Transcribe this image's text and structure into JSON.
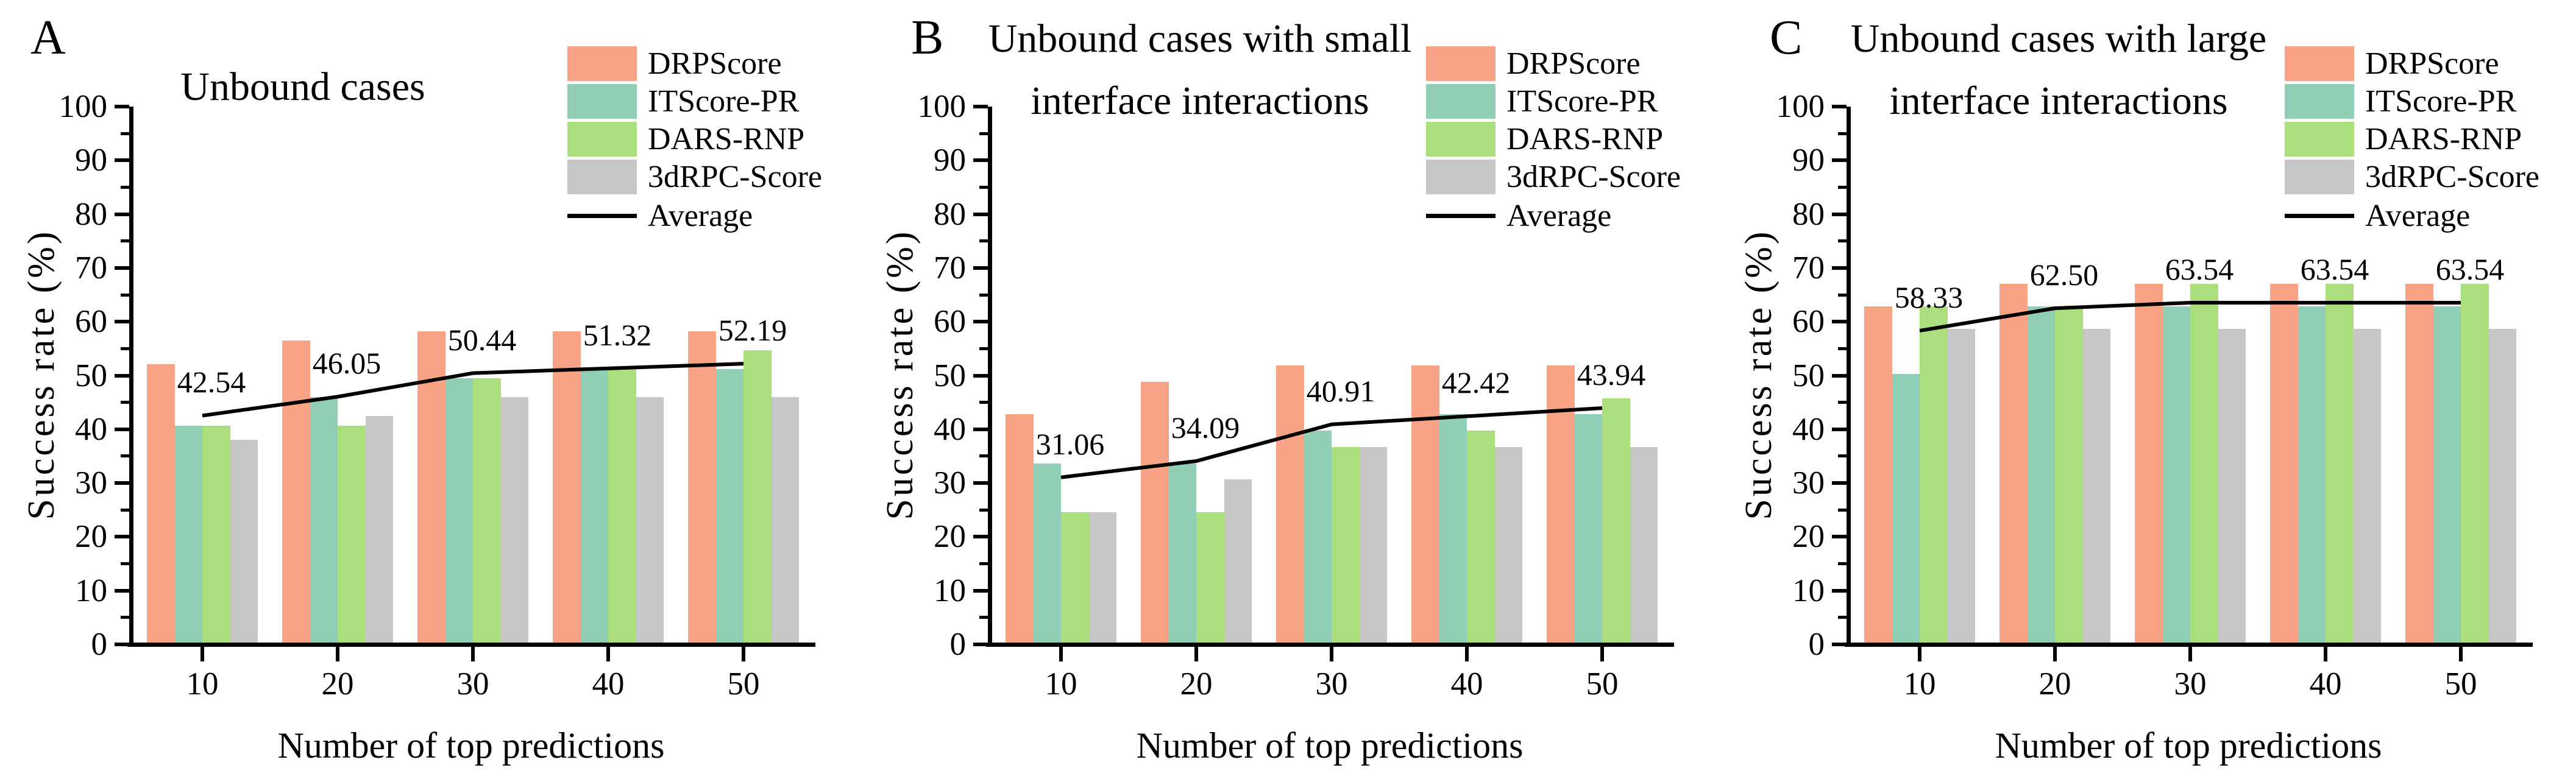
{
  "figure": {
    "background": "#ffffff",
    "axis_color": "#000000",
    "average_line_color": "#000000"
  },
  "chart_data": [
    {
      "type": "bar",
      "panel_label": "A",
      "title_lines": [
        "Unbound cases"
      ],
      "xlabel": "Number of top predictions",
      "ylabel": "Success rate (%)",
      "categories": [
        "10",
        "20",
        "30",
        "40",
        "50"
      ],
      "ylim": [
        0,
        100
      ],
      "ytick_step": 10,
      "yticks": [
        "0",
        "10",
        "20",
        "30",
        "40",
        "50",
        "60",
        "70",
        "80",
        "90",
        "100"
      ],
      "grid": "off",
      "legend_position": "top-right",
      "series": [
        {
          "name": "DRPScore",
          "color": "#F9A386",
          "values": [
            51.75,
            56.14,
            57.89,
            57.89,
            57.89
          ]
        },
        {
          "name": "ITScore-PR",
          "color": "#90CEB6",
          "values": [
            40.35,
            45.61,
            49.12,
            50.88,
            50.88
          ]
        },
        {
          "name": "DARS-RNP",
          "color": "#ABDF7D",
          "values": [
            40.35,
            40.35,
            49.12,
            50.88,
            54.39
          ]
        },
        {
          "name": "3dRPC-Score",
          "color": "#C6C6C6",
          "values": [
            37.72,
            42.11,
            45.61,
            45.61,
            45.61
          ]
        }
      ],
      "average": {
        "name": "Average",
        "color": "#000000",
        "values": [
          42.54,
          46.05,
          50.44,
          51.32,
          52.19
        ],
        "labels": [
          "42.54",
          "46.05",
          "50.44",
          "51.32",
          "52.19"
        ]
      }
    },
    {
      "type": "bar",
      "panel_label": "B",
      "title_lines": [
        "Unbound cases with small",
        "interface interactions"
      ],
      "xlabel": "Number of top predictions",
      "ylabel": "Success rate (%)",
      "categories": [
        "10",
        "20",
        "30",
        "40",
        "50"
      ],
      "ylim": [
        0,
        100
      ],
      "ytick_step": 10,
      "yticks": [
        "0",
        "10",
        "20",
        "30",
        "40",
        "50",
        "60",
        "70",
        "80",
        "90",
        "100"
      ],
      "grid": "off",
      "legend_position": "top-right",
      "series": [
        {
          "name": "DRPScore",
          "color": "#F9A386",
          "values": [
            42.42,
            48.48,
            51.52,
            51.52,
            51.52
          ]
        },
        {
          "name": "ITScore-PR",
          "color": "#90CEB6",
          "values": [
            33.33,
            33.33,
            39.39,
            42.42,
            42.42
          ]
        },
        {
          "name": "DARS-RNP",
          "color": "#ABDF7D",
          "values": [
            24.24,
            24.24,
            36.36,
            39.39,
            45.45
          ]
        },
        {
          "name": "3dRPC-Score",
          "color": "#C6C6C6",
          "values": [
            24.24,
            30.3,
            36.36,
            36.36,
            36.36
          ]
        }
      ],
      "average": {
        "name": "Average",
        "color": "#000000",
        "values": [
          31.06,
          34.09,
          40.91,
          42.42,
          43.94
        ],
        "labels": [
          "31.06",
          "34.09",
          "40.91",
          "42.42",
          "43.94"
        ]
      }
    },
    {
      "type": "bar",
      "panel_label": "C",
      "title_lines": [
        "Unbound cases with large",
        "interface interactions"
      ],
      "xlabel": "Number of top predictions",
      "ylabel": "Success rate (%)",
      "categories": [
        "10",
        "20",
        "30",
        "40",
        "50"
      ],
      "ylim": [
        0,
        100
      ],
      "ytick_step": 10,
      "yticks": [
        "0",
        "10",
        "20",
        "30",
        "40",
        "50",
        "60",
        "70",
        "80",
        "90",
        "100"
      ],
      "grid": "off",
      "legend_position": "top-right",
      "series": [
        {
          "name": "DRPScore",
          "color": "#F9A386",
          "values": [
            62.5,
            66.67,
            66.67,
            66.67,
            66.67
          ]
        },
        {
          "name": "ITScore-PR",
          "color": "#90CEB6",
          "values": [
            50.0,
            62.5,
            62.5,
            62.5,
            62.5
          ]
        },
        {
          "name": "DARS-RNP",
          "color": "#ABDF7D",
          "values": [
            62.5,
            62.5,
            66.67,
            66.67,
            66.67
          ]
        },
        {
          "name": "3dRPC-Score",
          "color": "#C6C6C6",
          "values": [
            58.33,
            58.33,
            58.33,
            58.33,
            58.33
          ]
        }
      ],
      "average": {
        "name": "Average",
        "color": "#000000",
        "values": [
          58.33,
          62.5,
          63.54,
          63.54,
          63.54
        ],
        "labels": [
          "58.33",
          "62.50",
          "63.54",
          "63.54",
          "63.54"
        ]
      }
    }
  ]
}
